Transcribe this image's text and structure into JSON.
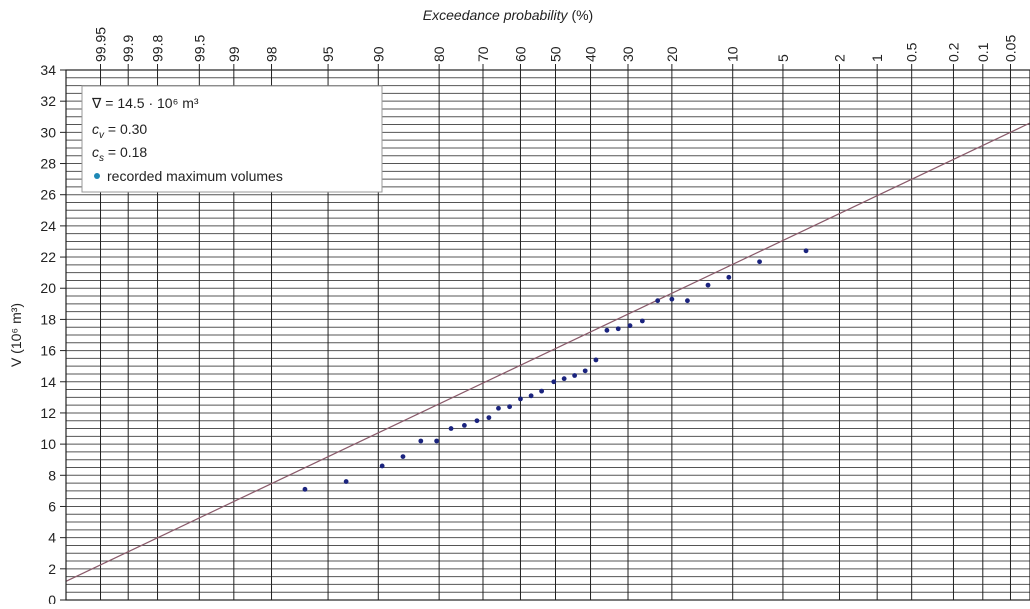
{
  "chart_data": {
    "type": "scatter",
    "title": "",
    "xlabel_italic": "Exceedance probability",
    "xlabel_unit": "(%)",
    "ylabel": "V (10⁶ m³)",
    "x_scale": "probability",
    "xlim": [
      99.98,
      0.03
    ],
    "ylim": [
      0,
      34
    ],
    "y_ticks": [
      0,
      2,
      4,
      6,
      8,
      10,
      12,
      14,
      16,
      18,
      20,
      22,
      24,
      26,
      28,
      30,
      32,
      34
    ],
    "x_ticks": [
      "99.95",
      "99.9",
      "99.8",
      "99.5",
      "99",
      "98",
      "95",
      "90",
      "80",
      "70",
      "60",
      "50",
      "40",
      "30",
      "20",
      "10",
      "5",
      "2",
      "1",
      "0.5",
      "0.2",
      "0.1",
      "0.05"
    ],
    "grid": true,
    "legend_position": "top-left",
    "legend": {
      "line1_text": "∇ = 14.5 · 10⁶ m³",
      "line2_label": "c",
      "line2_sub": "v",
      "line2_value": " = 0.30",
      "line3_label": "c",
      "line3_sub": "s",
      "line3_value": " = 0.18",
      "points_label": "recorded maximum volumes"
    },
    "series": [
      {
        "name": "recorded maximum volumes",
        "kind": "points",
        "points": [
          {
            "x": 96.5,
            "y": 7.1
          },
          {
            "x": 93.5,
            "y": 7.6
          },
          {
            "x": 89.5,
            "y": 8.6
          },
          {
            "x": 86.5,
            "y": 9.2
          },
          {
            "x": 83.5,
            "y": 10.2
          },
          {
            "x": 80.5,
            "y": 10.2
          },
          {
            "x": 77.5,
            "y": 11.0
          },
          {
            "x": 74.5,
            "y": 11.2
          },
          {
            "x": 71.5,
            "y": 11.5
          },
          {
            "x": 68.5,
            "y": 11.7
          },
          {
            "x": 66.0,
            "y": 12.3
          },
          {
            "x": 63.0,
            "y": 12.4
          },
          {
            "x": 60.0,
            "y": 12.9
          },
          {
            "x": 57.0,
            "y": 13.1
          },
          {
            "x": 54.0,
            "y": 13.4
          },
          {
            "x": 50.5,
            "y": 14.0
          },
          {
            "x": 47.5,
            "y": 14.2
          },
          {
            "x": 44.5,
            "y": 14.4
          },
          {
            "x": 41.5,
            "y": 14.7
          },
          {
            "x": 38.5,
            "y": 15.4
          },
          {
            "x": 35.5,
            "y": 17.3
          },
          {
            "x": 32.5,
            "y": 17.4
          },
          {
            "x": 29.5,
            "y": 17.6
          },
          {
            "x": 26.5,
            "y": 17.9
          },
          {
            "x": 23.0,
            "y": 19.2
          },
          {
            "x": 20.0,
            "y": 19.3
          },
          {
            "x": 17.0,
            "y": 19.2
          },
          {
            "x": 13.5,
            "y": 20.2
          },
          {
            "x": 10.5,
            "y": 20.7
          },
          {
            "x": 7.0,
            "y": 21.7
          },
          {
            "x": 3.5,
            "y": 22.4
          }
        ]
      },
      {
        "name": "",
        "kind": "line",
        "points": [
          {
            "x": 99.98,
            "y": 1.2
          },
          {
            "x": 0.03,
            "y": 30.6
          }
        ]
      }
    ]
  }
}
